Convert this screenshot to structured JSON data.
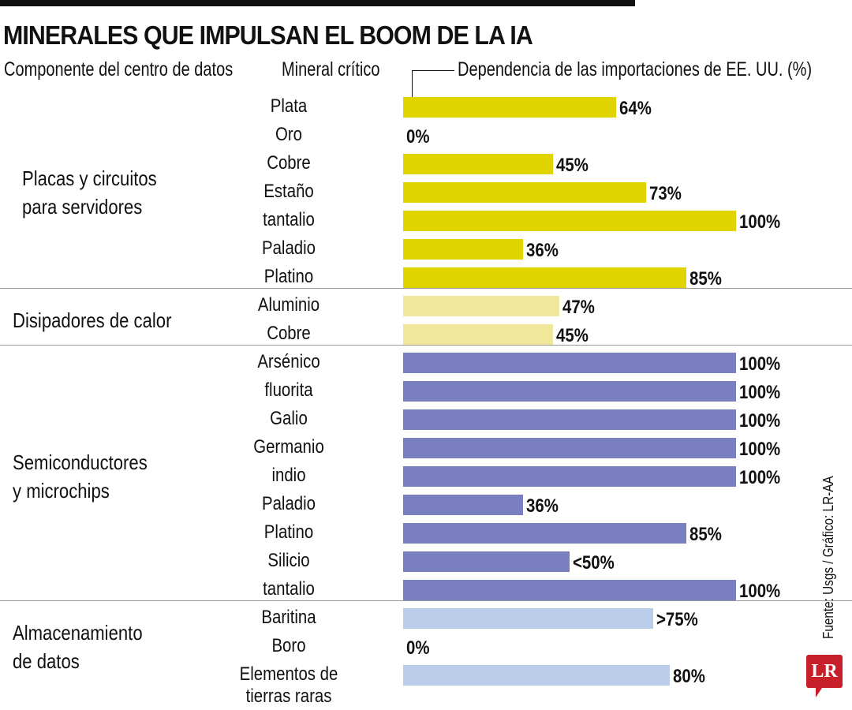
{
  "title": "MINERALES QUE IMPULSAN EL BOOM DE LA IA",
  "headers": {
    "component": "Componente del centro de datos",
    "mineral": "Mineral crítico",
    "dependence": "Dependencia de las importaciones de EE. UU. (%)"
  },
  "source": "Fuente: Usgs / Gráfico: LR-AA",
  "logo": "LR",
  "colors": {
    "placas": "#e0d400",
    "disipadores": "#f0e79a",
    "semiconductores": "#7a7fbf",
    "almacenamiento": "#bccde9"
  },
  "chart_data": {
    "type": "bar",
    "orientation": "horizontal",
    "xlim": [
      0,
      100
    ],
    "groups": [
      {
        "name": "Placas y circuitos para servidores",
        "lines": [
          "Placas y circuitos",
          "para servidores"
        ],
        "color_key": "placas",
        "items": [
          {
            "mineral": "Plata",
            "value": 64,
            "label": "64%"
          },
          {
            "mineral": "Oro",
            "value": 0,
            "label": "0%"
          },
          {
            "mineral": "Cobre",
            "value": 45,
            "label": "45%"
          },
          {
            "mineral": "Estaño",
            "value": 73,
            "label": "73%"
          },
          {
            "mineral": "tantalio",
            "value": 100,
            "label": "100%"
          },
          {
            "mineral": "Paladio",
            "value": 36,
            "label": "36%"
          },
          {
            "mineral": "Platino",
            "value": 85,
            "label": "85%"
          }
        ]
      },
      {
        "name": "Disipadores de calor",
        "lines": [
          "Disipadores de calor"
        ],
        "color_key": "disipadores",
        "items": [
          {
            "mineral": "Aluminio",
            "value": 47,
            "label": "47%"
          },
          {
            "mineral": "Cobre",
            "value": 45,
            "label": "45%"
          }
        ]
      },
      {
        "name": "Semiconductores y microchips",
        "lines": [
          "Semiconductores",
          "y microchips"
        ],
        "color_key": "semiconductores",
        "items": [
          {
            "mineral": "Arsénico",
            "value": 100,
            "label": "100%"
          },
          {
            "mineral": "fluorita",
            "value": 100,
            "label": "100%"
          },
          {
            "mineral": "Galio",
            "value": 100,
            "label": "100%"
          },
          {
            "mineral": "Germanio",
            "value": 100,
            "label": "100%"
          },
          {
            "mineral": "indio",
            "value": 100,
            "label": "100%"
          },
          {
            "mineral": "Paladio",
            "value": 36,
            "label": "36%"
          },
          {
            "mineral": "Platino",
            "value": 85,
            "label": "85%"
          },
          {
            "mineral": "Silicio",
            "value": 50,
            "label": "<50%"
          },
          {
            "mineral": "tantalio",
            "value": 100,
            "label": "100%"
          }
        ]
      },
      {
        "name": "Almacenamiento de datos",
        "lines": [
          "Almacenamiento",
          "de datos"
        ],
        "color_key": "almacenamiento",
        "items": [
          {
            "mineral": "Baritina",
            "value": 75,
            "label": ">75%"
          },
          {
            "mineral": "Boro",
            "value": 0,
            "label": "0%"
          },
          {
            "mineral": "Elementos de tierras raras",
            "value": 80,
            "label": "80%"
          }
        ]
      }
    ]
  }
}
